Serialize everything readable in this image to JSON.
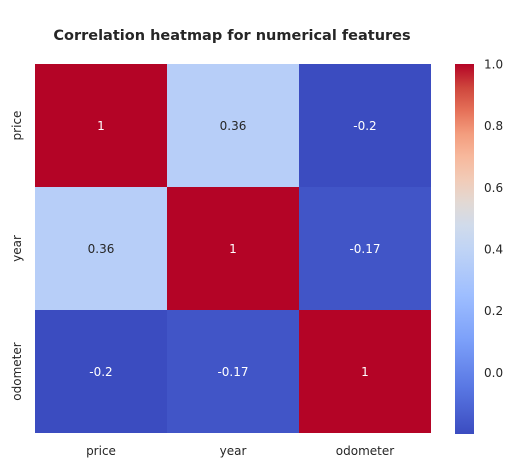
{
  "chart_data": {
    "type": "heatmap",
    "title": "Correlation heatmap for numerical features",
    "x_labels": [
      "price",
      "year",
      "odometer"
    ],
    "y_labels": [
      "price",
      "year",
      "odometer"
    ],
    "values": [
      [
        1,
        0.36,
        -0.2
      ],
      [
        0.36,
        1,
        -0.17
      ],
      [
        -0.2,
        -0.17,
        1
      ]
    ],
    "annotations": [
      [
        "1",
        "0.36",
        "-0.2"
      ],
      [
        "0.36",
        "1",
        "-0.17"
      ],
      [
        "-0.2",
        "-0.17",
        "1"
      ]
    ],
    "colormap": "coolwarm",
    "vmin": -0.2,
    "vmax": 1.0,
    "colorbar": {
      "ticks": [
        0.0,
        0.2,
        0.4,
        0.6,
        0.8,
        1.0
      ],
      "tick_labels": [
        "0.0",
        "0.2",
        "0.4",
        "0.6",
        "0.8",
        "1.0"
      ]
    },
    "grid": false
  }
}
